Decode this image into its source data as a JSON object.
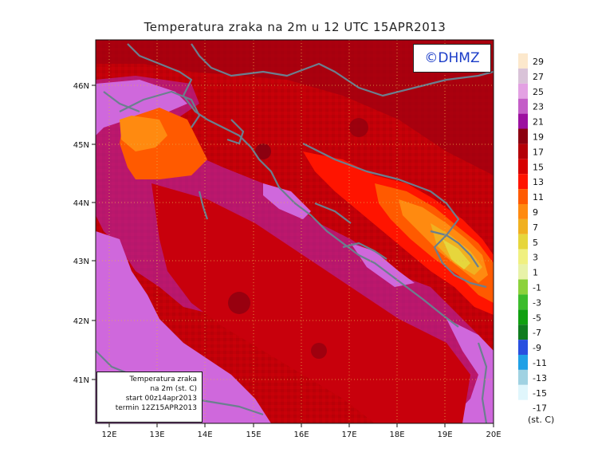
{
  "title": "Temperatura zraka na 2m u 12 UTC 15APR2013",
  "logo": "©DHMZ",
  "info_box": {
    "line1": "Temperatura zraka",
    "line2": "na 2m (st. C)",
    "line3": "start 00z14apr2013",
    "line4": "termin 12Z15APR2013"
  },
  "x_axis": {
    "ticks": [
      "12E",
      "13E",
      "14E",
      "15E",
      "16E",
      "17E",
      "18E",
      "19E",
      "20E"
    ]
  },
  "y_axis": {
    "ticks": [
      "46N",
      "45N",
      "44N",
      "43N",
      "42N",
      "41N"
    ]
  },
  "legend": {
    "unit": "(st. C)",
    "labels": [
      "29",
      "27",
      "25",
      "23",
      "21",
      "19",
      "17",
      "15",
      "13",
      "11",
      "9",
      "7",
      "5",
      "3",
      "1",
      "-1",
      "-3",
      "-5",
      "-7",
      "-9",
      "-11",
      "-13",
      "-15",
      "-17"
    ],
    "colors": [
      "#fce8cc",
      "#d9c3d8",
      "#e3a1e3",
      "#c45ec8",
      "#9c10a0",
      "#8c0010",
      "#b40008",
      "#d60000",
      "#ff1400",
      "#ff5a00",
      "#ff8a10",
      "#f0b020",
      "#e6d63c",
      "#f0f080",
      "#e8f2a8",
      "#8cd23c",
      "#3cbc2c",
      "#10a010",
      "#107c20",
      "#2850e0",
      "#20a0e6",
      "#a0d2e2",
      "#e0f6fc"
    ]
  },
  "colors": {
    "sea_magenta": "#d56be0",
    "land_red": "#c20008",
    "coastline": "#6b7f8f",
    "logo_text": "#1a3cc8"
  }
}
